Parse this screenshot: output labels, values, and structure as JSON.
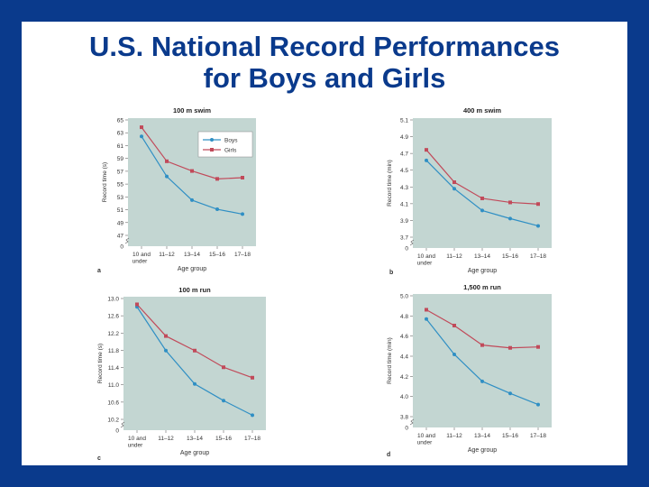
{
  "slide": {
    "title_line1": "U.S. National Record Performances",
    "title_line2": "for Boys and Girls"
  },
  "colors": {
    "background": "#0a3a8c",
    "plot_bg": "#c3d6d2",
    "boys": "#2f8fc4",
    "girls": "#c14a5a",
    "title": "#0a3a8c"
  },
  "chart_data": [
    {
      "type": "line",
      "panel_letter": "a",
      "title": "100 m swim",
      "xlabel": "Age group",
      "ylabel": "Record time (s)",
      "categories": [
        "10 and under",
        "11–12",
        "13–14",
        "15–16",
        "17–18"
      ],
      "yticks": [
        "65",
        "63",
        "61",
        "59",
        "57",
        "55",
        "53",
        "51",
        "49",
        "47",
        "0"
      ],
      "ylim": [
        46,
        65
      ],
      "axis_break": true,
      "legend": [
        "Boys",
        "Girls"
      ],
      "legend_position": "top-right",
      "series": [
        {
          "name": "Boys",
          "values": [
            62.3,
            55.7,
            51.8,
            50.3,
            49.5
          ]
        },
        {
          "name": "Girls",
          "values": [
            63.8,
            58.2,
            56.6,
            55.3,
            55.5
          ]
        }
      ]
    },
    {
      "type": "line",
      "panel_letter": "b",
      "title": "400 m swim",
      "xlabel": "Age group",
      "ylabel": "Record time (min)",
      "categories": [
        "10 and under",
        "11–12",
        "13–14",
        "15–16",
        "17–18"
      ],
      "yticks": [
        "5.1",
        "4.9",
        "4.7",
        "4.5",
        "4.3",
        "4.1",
        "3.9",
        "3.7",
        "0"
      ],
      "ylim": [
        3.65,
        5.1
      ],
      "axis_break": true,
      "series": [
        {
          "name": "Boys",
          "values": [
            4.6,
            4.25,
            3.98,
            3.88,
            3.79
          ]
        },
        {
          "name": "Girls",
          "values": [
            4.73,
            4.33,
            4.13,
            4.08,
            4.06
          ]
        }
      ]
    },
    {
      "type": "line",
      "panel_letter": "c",
      "title": "100 m run",
      "xlabel": "Age group",
      "ylabel": "Record time (s)",
      "categories": [
        "10 and under",
        "11–12",
        "13–14",
        "15–16",
        "17–18"
      ],
      "yticks": [
        "13.0",
        "12.6",
        "12.2",
        "11.8",
        "11.4",
        "11.0",
        "10.6",
        "10.2",
        "0"
      ],
      "ylim": [
        10.1,
        13.0
      ],
      "axis_break": true,
      "series": [
        {
          "name": "Boys",
          "values": [
            12.8,
            11.75,
            10.95,
            10.55,
            10.2
          ]
        },
        {
          "name": "Girls",
          "values": [
            12.86,
            12.1,
            11.75,
            11.35,
            11.1
          ]
        }
      ]
    },
    {
      "type": "line",
      "panel_letter": "d",
      "title": "1,500 m run",
      "xlabel": "Age group",
      "ylabel": "Record time (min)",
      "categories": [
        "10 and under",
        "11–12",
        "13–14",
        "15–16",
        "17–18"
      ],
      "yticks": [
        "5.0",
        "4.8",
        "4.6",
        "4.4",
        "4.2",
        "4.0",
        "3.8",
        "0"
      ],
      "ylim": [
        3.7,
        5.0
      ],
      "axis_break": true,
      "series": [
        {
          "name": "Boys",
          "values": [
            4.75,
            4.37,
            4.08,
            3.95,
            3.83
          ]
        },
        {
          "name": "Girls",
          "values": [
            4.85,
            4.68,
            4.47,
            4.44,
            4.45
          ]
        }
      ]
    }
  ]
}
